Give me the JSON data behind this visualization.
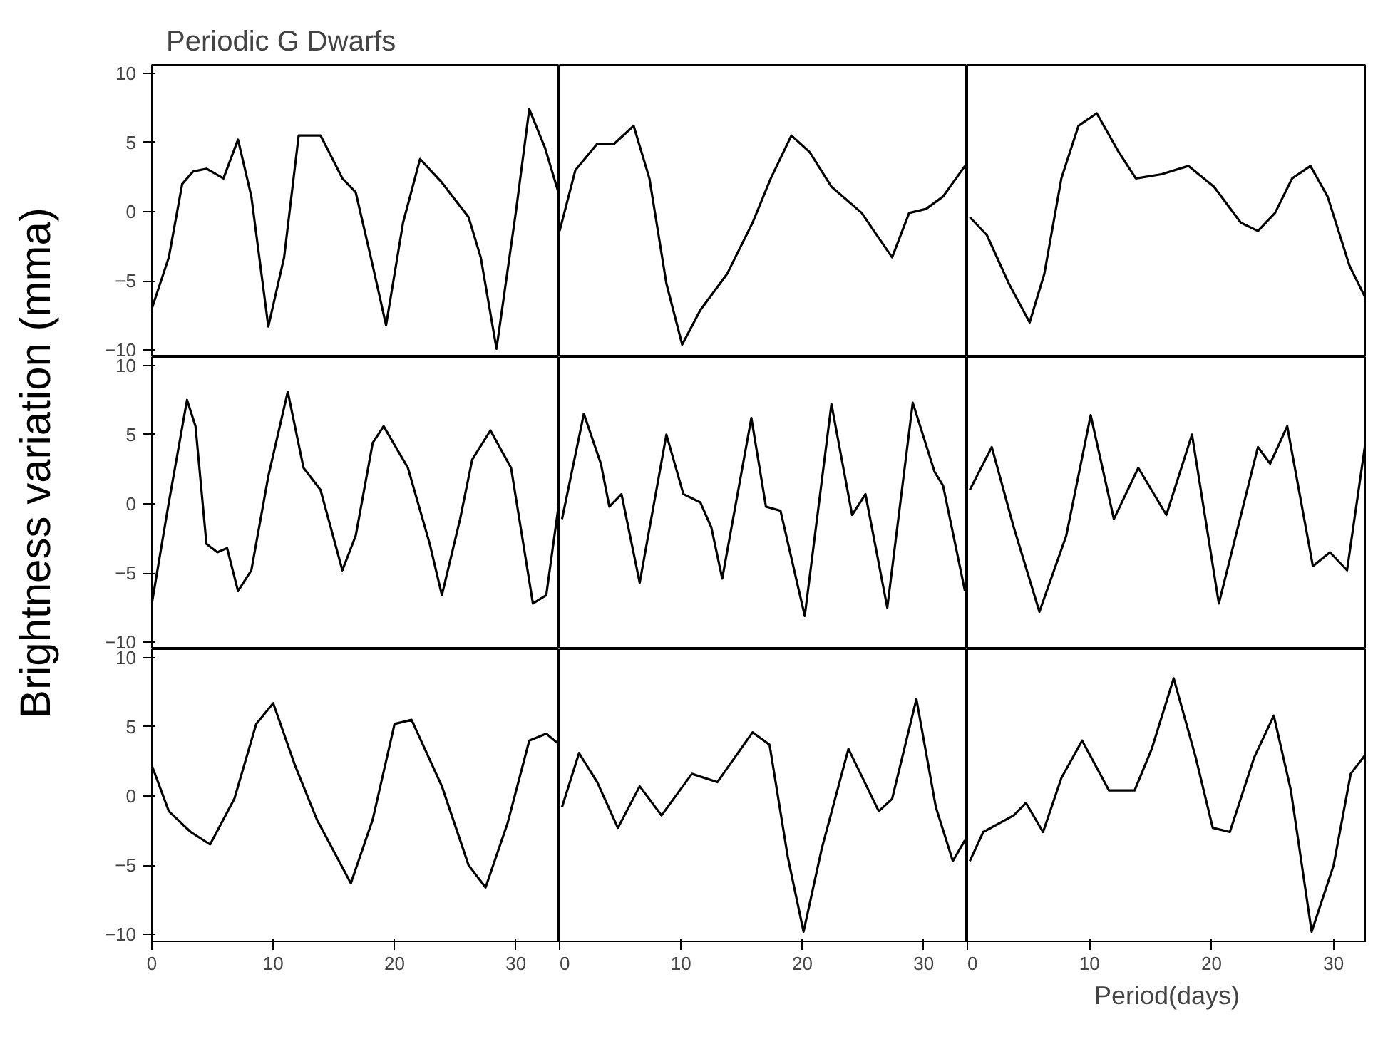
{
  "chart_data": [
    {
      "type": "line",
      "title": "Periodic G Dwarfs",
      "color": "#000000",
      "tick_labels": "y",
      "xlim": [
        0,
        33.6
      ],
      "ylim": [
        -10.5,
        10.6
      ],
      "yticks": [
        -10,
        -5,
        0,
        5,
        10
      ],
      "x": [
        0,
        1.4,
        2.5,
        3.4,
        4.5,
        5.9,
        7.1,
        8.2,
        9.6,
        10.9,
        12.1,
        13.9,
        15.7,
        16.8,
        18.2,
        19.3,
        20.7,
        22.1,
        23.9,
        26.1,
        27.1,
        28.4,
        30,
        31.1,
        32.4,
        33.6
      ],
      "values": [
        -7,
        -3.3,
        2,
        2.9,
        3.1,
        2.4,
        5.2,
        1.1,
        -8.3,
        -3.3,
        5.5,
        5.5,
        2.4,
        1.4,
        -3.9,
        -8.2,
        -0.8,
        3.8,
        2.1,
        -0.4,
        -3.3,
        -9.9,
        0,
        7.4,
        4.6,
        1.1
      ]
    },
    {
      "type": "line",
      "color": "#000000",
      "tick_labels": false,
      "xlim": [
        0,
        33.6
      ],
      "ylim": [
        -10.5,
        10.6
      ],
      "x": [
        0,
        1.3,
        3.1,
        4.5,
        6.1,
        7.4,
        8.8,
        10.1,
        11.6,
        13.8,
        15.9,
        17.4,
        19.1,
        20.6,
        22.4,
        24.9,
        25.9,
        27.4,
        28.8,
        30.2,
        31.6,
        33.4
      ],
      "values": [
        -1.4,
        3,
        4.9,
        4.9,
        6.2,
        2.4,
        -5.2,
        -9.6,
        -7.1,
        -4.5,
        -0.8,
        2.4,
        5.5,
        4.3,
        1.8,
        -0.1,
        -1.4,
        -3.3,
        -0.1,
        0.2,
        1.1,
        3.3
      ]
    },
    {
      "type": "line",
      "color": "#000000",
      "tick_labels": false,
      "xlim": [
        0,
        32.7
      ],
      "ylim": [
        -10.5,
        10.6
      ],
      "x": [
        0.2,
        1.6,
        3.4,
        5.1,
        6.3,
        7.7,
        9.1,
        10.6,
        12.4,
        13.8,
        15.9,
        18.1,
        20.2,
        22.4,
        23.8,
        25.2,
        26.6,
        28.1,
        29.5,
        31.3,
        32.7
      ],
      "values": [
        -0.4,
        -1.7,
        -5.2,
        -8,
        -4.5,
        2.4,
        6.2,
        7.1,
        4.3,
        2.4,
        2.7,
        3.3,
        1.8,
        -0.8,
        -1.4,
        -0.1,
        2.4,
        3.3,
        1.1,
        -3.9,
        -6.4
      ]
    },
    {
      "type": "line",
      "color": "#000000",
      "tick_labels": "y",
      "xlim": [
        0,
        33.6
      ],
      "ylim": [
        -10.5,
        10.6
      ],
      "yticks": [
        -10,
        -5,
        0,
        5,
        10
      ],
      "x": [
        0,
        1.4,
        2.9,
        3.6,
        4.5,
        5.4,
        6.2,
        7.1,
        8.2,
        9.6,
        11.2,
        12.5,
        13.9,
        15.7,
        16.8,
        18.2,
        19.1,
        21.1,
        22.9,
        23.9,
        25.4,
        26.4,
        27.9,
        29.6,
        31.4,
        32.5,
        33.6
      ],
      "values": [
        -7.2,
        0.1,
        7.5,
        5.6,
        -2.9,
        -3.5,
        -3.2,
        -6.3,
        -4.8,
        2,
        8.1,
        2.6,
        1,
        -4.8,
        -2.3,
        4.4,
        5.6,
        2.6,
        -2.9,
        -6.6,
        -1.1,
        3.2,
        5.3,
        2.6,
        -7.2,
        -6.6,
        0.4
      ]
    },
    {
      "type": "line",
      "color": "#000000",
      "tick_labels": false,
      "xlim": [
        0,
        33.6
      ],
      "ylim": [
        -10.5,
        10.6
      ],
      "x": [
        0.2,
        2,
        3.4,
        4.1,
        5.1,
        6.6,
        8.8,
        10.2,
        11.6,
        12.5,
        13.4,
        15.8,
        17,
        18.2,
        20.2,
        22.4,
        24.1,
        25.2,
        27,
        29.1,
        30.9,
        31.6,
        33.4
      ],
      "values": [
        -1.1,
        6.5,
        2.9,
        -0.2,
        0.7,
        -5.7,
        5,
        0.7,
        0.1,
        -1.7,
        -5.4,
        6.2,
        -0.2,
        -0.5,
        -8.1,
        7.2,
        -0.8,
        0.7,
        -7.5,
        7.3,
        2.3,
        1.3,
        -6.3
      ]
    },
    {
      "type": "line",
      "color": "#000000",
      "tick_labels": false,
      "xlim": [
        0,
        32.7
      ],
      "ylim": [
        -10.5,
        10.6
      ],
      "x": [
        0.2,
        2,
        3.8,
        5.9,
        8.1,
        10.1,
        12,
        14,
        16.3,
        18.4,
        20.6,
        23.8,
        24.8,
        26.2,
        28.3,
        29.7,
        31.1,
        32.7
      ],
      "values": [
        1,
        4.1,
        -1.7,
        -7.8,
        -2.3,
        6.4,
        -1.1,
        2.6,
        -0.8,
        5,
        -7.2,
        4.1,
        2.9,
        5.6,
        -4.5,
        -3.5,
        -4.8,
        5
      ]
    },
    {
      "type": "line",
      "color": "#000000",
      "xlim": [
        0,
        33.6
      ],
      "ylim": [
        -10.5,
        10.6
      ],
      "xticks": [
        0,
        10,
        20,
        30
      ],
      "yticks": [
        -10,
        -5,
        0,
        5,
        10
      ],
      "x": [
        0,
        1.4,
        3.2,
        4.8,
        6.8,
        8.6,
        10,
        11.8,
        13.6,
        16.4,
        18.2,
        20,
        21.4,
        23.9,
        26.1,
        27.5,
        29.3,
        31.1,
        32.5,
        33.6
      ],
      "values": [
        2.2,
        -1.1,
        -2.6,
        -3.5,
        -0.2,
        5.2,
        6.7,
        2.2,
        -1.7,
        -6.3,
        -1.7,
        5.2,
        5.5,
        0.7,
        -5,
        -6.6,
        -2,
        4,
        4.5,
        3.7
      ]
    },
    {
      "type": "line",
      "color": "#000000",
      "tick_labels": "x",
      "xlim": [
        0,
        33.6
      ],
      "ylim": [
        -10.5,
        10.6
      ],
      "xticks": [
        0,
        10,
        20,
        30
      ],
      "x": [
        0.2,
        1.6,
        3.1,
        4.8,
        6.6,
        8.4,
        10.9,
        13,
        15.9,
        17.3,
        18.8,
        20.1,
        21.6,
        23.8,
        26.3,
        27.4,
        29.4,
        31,
        32.4,
        33.4
      ],
      "values": [
        -0.8,
        3.1,
        1,
        -2.3,
        0.7,
        -1.4,
        1.6,
        1,
        4.6,
        3.7,
        -4.4,
        -9.8,
        -3.8,
        3.4,
        -1.1,
        -0.2,
        7,
        -0.8,
        -4.7,
        -3.2
      ]
    },
    {
      "type": "line",
      "xlabel": "Period(days)",
      "color": "#000000",
      "tick_labels": "x",
      "xlim": [
        0,
        32.7
      ],
      "ylim": [
        -10.5,
        10.6
      ],
      "xticks": [
        0,
        10,
        20,
        30
      ],
      "x": [
        0.2,
        1.3,
        3.8,
        4.8,
        6.2,
        7.7,
        9.4,
        11.6,
        13.7,
        15.1,
        16.9,
        18.7,
        20.1,
        21.5,
        23.5,
        25.1,
        26.5,
        28.2,
        30,
        31.4,
        32.7
      ],
      "values": [
        -4.7,
        -2.6,
        -1.4,
        -0.5,
        -2.6,
        1.3,
        4,
        0.4,
        0.4,
        3.4,
        8.5,
        2.8,
        -2.3,
        -2.6,
        2.8,
        5.8,
        0.4,
        -9.8,
        -5,
        1.6,
        3.1
      ]
    },
    {
      "type": "other",
      "ylabel": "Brightness variation (mma)"
    }
  ]
}
